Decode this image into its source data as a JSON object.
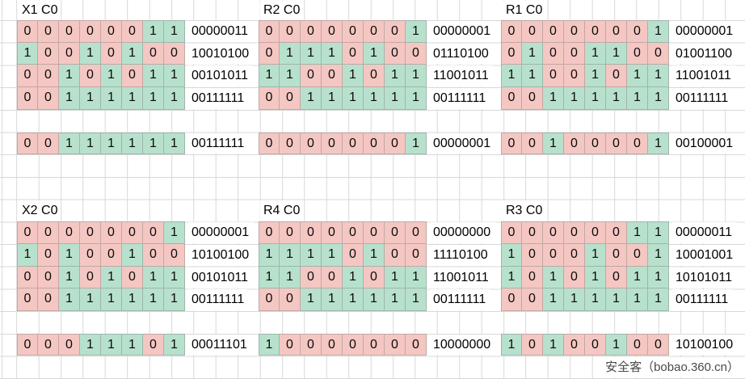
{
  "watermark": {
    "text": "安全客（bobao.360.cn）"
  },
  "colors": {
    "zero_fill": "#f4c7c3",
    "one_fill": "#b7e1cd",
    "grid_line": "#d8d8d8",
    "text": "#000000",
    "watermark_text": "#4a4a4a",
    "comment_marker": "#111111"
  },
  "blocks": [
    {
      "title": "X1 C0",
      "grid_col": 0,
      "grid_row": 0,
      "rows": [
        "00000011",
        "10010100",
        "00101011",
        "00111111"
      ],
      "result": "00111111",
      "result_comment_cells": [
        0,
        1
      ]
    },
    {
      "title": "R2 C0",
      "grid_col": 1,
      "grid_row": 0,
      "rows": [
        "00000001",
        "01110100",
        "11001011",
        "00111111"
      ],
      "result": "00000001",
      "result_comment_cells": []
    },
    {
      "title": "R1 C0",
      "grid_col": 2,
      "grid_row": 0,
      "rows": [
        "00000001",
        "01001100",
        "11001011",
        "00111111"
      ],
      "result": "00100001",
      "result_comment_cells": []
    },
    {
      "title": "X2 C0",
      "grid_col": 0,
      "grid_row": 1,
      "rows": [
        "00000001",
        "10100100",
        "00101011",
        "00111111"
      ],
      "result": "00011101",
      "result_comment_cells": []
    },
    {
      "title": "R4 C0",
      "grid_col": 1,
      "grid_row": 1,
      "rows": [
        "00000000",
        "11110100",
        "11001011",
        "00111111"
      ],
      "result": "10000000",
      "result_comment_cells": []
    },
    {
      "title": "R3 C0",
      "grid_col": 2,
      "grid_row": 1,
      "rows": [
        "00000011",
        "10001001",
        "10101011",
        "00111111"
      ],
      "result": "10100100",
      "result_comment_cells": []
    }
  ]
}
